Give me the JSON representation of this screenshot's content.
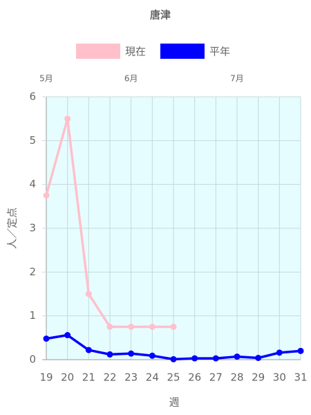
{
  "chart_data": {
    "type": "line",
    "title": "唐津",
    "categories": [
      "19",
      "20",
      "21",
      "22",
      "23",
      "24",
      "25",
      "26",
      "27",
      "28",
      "29",
      "30",
      "31"
    ],
    "series": [
      {
        "name": "現在",
        "color": "#ffc0cb",
        "values": [
          3.75,
          5.5,
          1.5,
          0.75,
          0.75,
          0.75,
          0.75,
          null,
          null,
          null,
          null,
          null,
          null
        ]
      },
      {
        "name": "平年",
        "color": "#0000ff",
        "values": [
          0.48,
          0.56,
          0.22,
          0.12,
          0.14,
          0.09,
          0.01,
          0.03,
          0.03,
          0.07,
          0.04,
          0.16,
          0.2
        ]
      }
    ],
    "month_labels": [
      {
        "label": "5月",
        "category": "19"
      },
      {
        "label": "6月",
        "category": "23"
      },
      {
        "label": "7月",
        "category": "28"
      }
    ],
    "ylim": [
      0,
      6
    ],
    "yticks": [
      0,
      1,
      2,
      3,
      4,
      5,
      6
    ],
    "ylabel": "人／定点",
    "xlabel": "週",
    "grid": true,
    "background": "#e6fdff"
  }
}
